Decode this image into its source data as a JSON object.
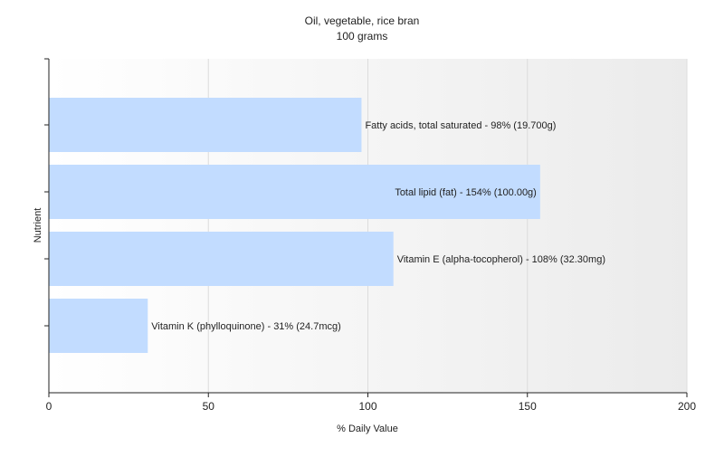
{
  "chart_data": {
    "type": "bar",
    "orientation": "horizontal",
    "title": "Oil, vegetable, rice bran",
    "subtitle": "100 grams",
    "xlabel": "% Daily Value",
    "ylabel": "Nutrient",
    "xlim": [
      0,
      200
    ],
    "xticks": [
      "0",
      "50",
      "100",
      "150",
      "200"
    ],
    "grid": "vertical",
    "bar_color": "#c2dcff",
    "categories": [
      "Fatty acids, total saturated",
      "Total lipid (fat)",
      "Vitamin E (alpha-tocopherol)",
      "Vitamin K (phylloquinone)"
    ],
    "values": [
      98,
      154,
      108,
      31
    ],
    "amounts": [
      "19.700g",
      "100.00g",
      "32.30mg",
      "24.7mcg"
    ],
    "bar_labels": [
      "Fatty acids, total saturated - 98% (19.700g)",
      "Total lipid (fat) - 154% (100.00g)",
      "Vitamin E (alpha-tocopherol) - 108% (32.30mg)",
      "Vitamin K (phylloquinone) - 31% (24.7mcg)"
    ]
  }
}
